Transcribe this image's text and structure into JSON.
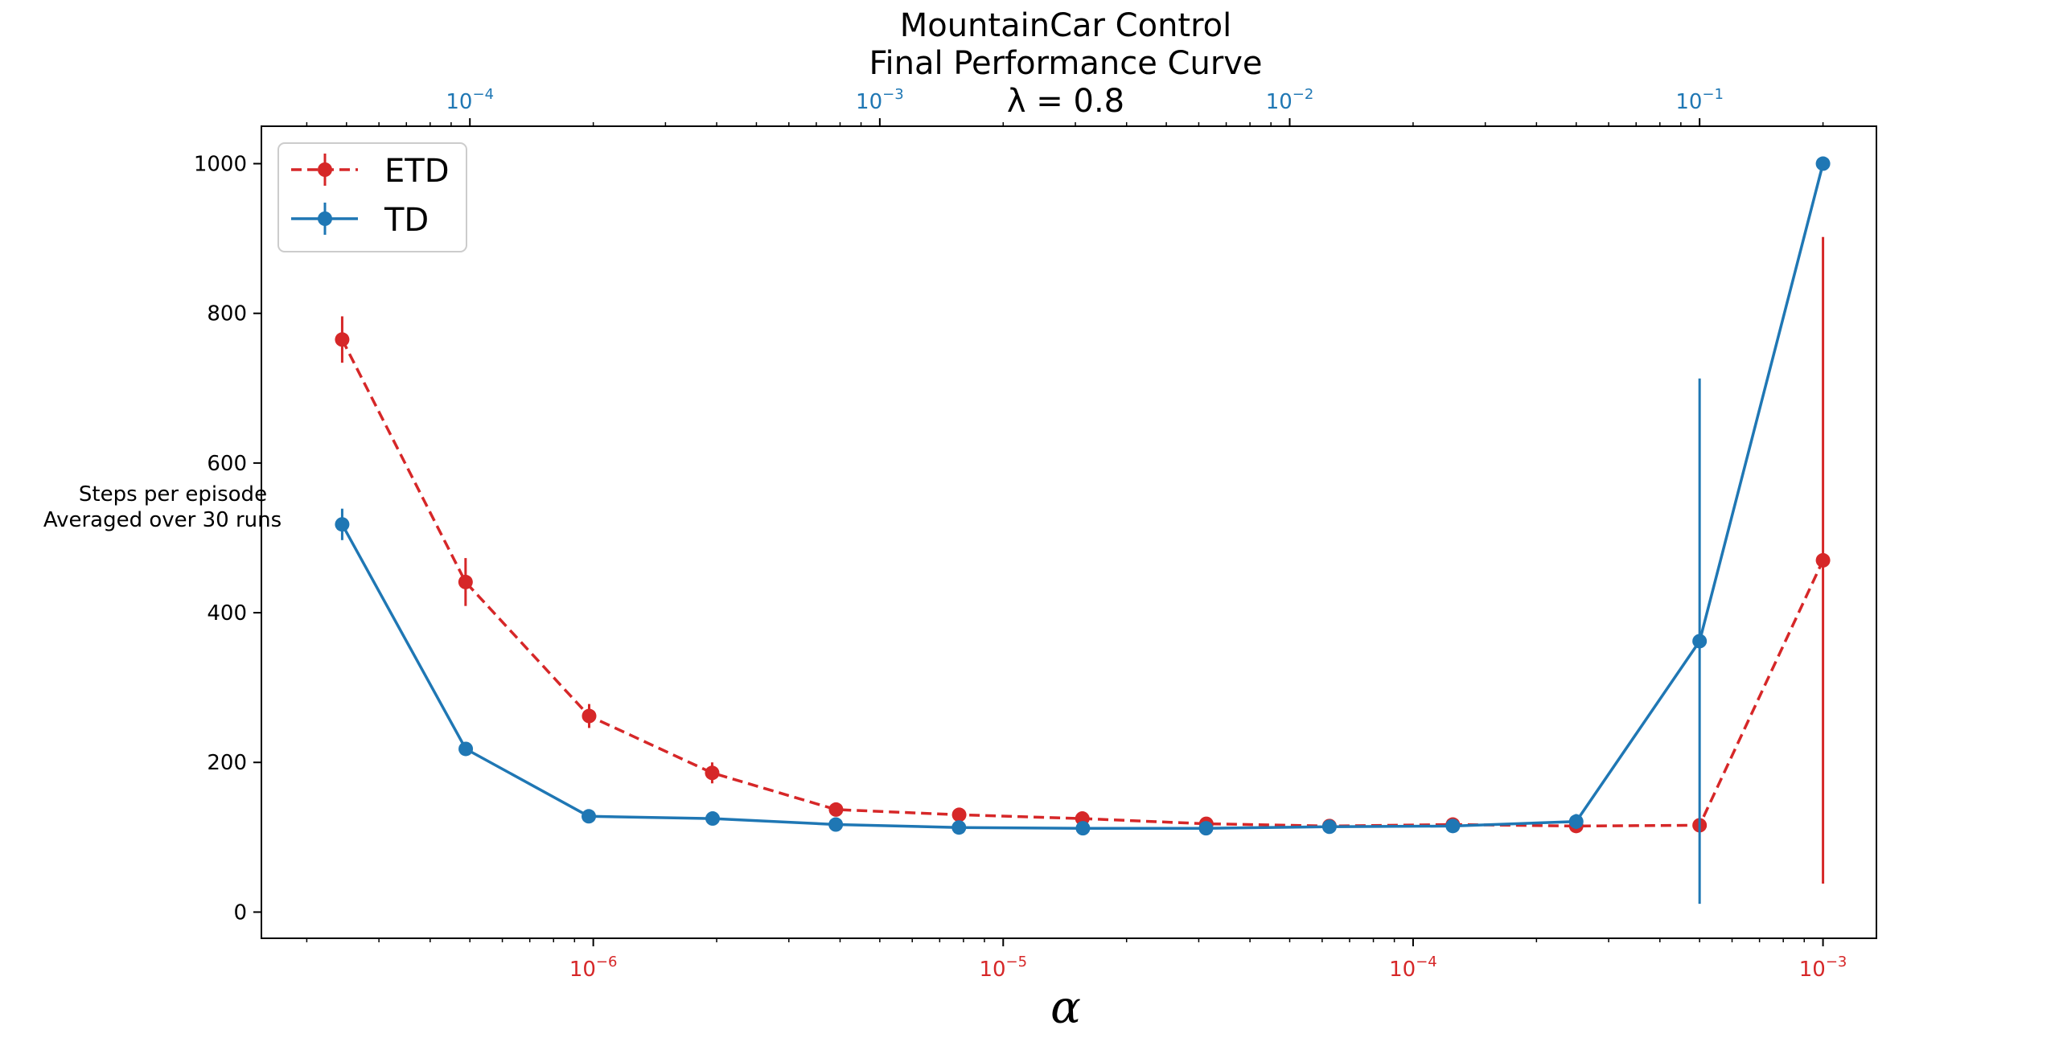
{
  "chart_data": {
    "type": "line",
    "title_lines": [
      "MountainCar Control",
      "Final Performance Curve",
      "λ = 0.8"
    ],
    "xlabel": "α",
    "ylabel_lines": [
      "Steps per episode",
      "Averaged over 30 runs"
    ],
    "ylim": [
      -35,
      1050
    ],
    "yticks": [
      0,
      200,
      400,
      600,
      800,
      1000
    ],
    "x_bottom": {
      "scale": "log",
      "color": "#d62728",
      "range": [
        1.55e-07,
        0.00135
      ],
      "tick_exponents": [
        -6,
        -5,
        -4,
        -3
      ]
    },
    "x_top": {
      "scale": "log",
      "color": "#1f77b4",
      "range": [
        3.1e-05,
        0.27
      ],
      "tick_exponents": [
        -4,
        -3,
        -2,
        -1
      ]
    },
    "legend_position": "top-left",
    "series": [
      {
        "name": "ETD",
        "color": "#d62728",
        "linestyle": "dashed",
        "axis": "bottom",
        "x": [
          2.44e-07,
          4.88e-07,
          9.77e-07,
          1.95e-06,
          3.91e-06,
          7.81e-06,
          1.56e-05,
          3.13e-05,
          6.25e-05,
          0.000125,
          0.00025,
          0.0005,
          0.001
        ],
        "y": [
          765,
          441,
          262,
          186,
          137,
          130,
          125,
          118,
          115,
          117,
          115,
          116,
          470
        ],
        "err": [
          31,
          32,
          16,
          14,
          8,
          6,
          5,
          4,
          4,
          5,
          6,
          6,
          432
        ]
      },
      {
        "name": "TD",
        "color": "#1f77b4",
        "linestyle": "solid",
        "axis": "top",
        "x": [
          4.88e-05,
          9.77e-05,
          0.000195,
          0.000391,
          0.000781,
          0.00156,
          0.00313,
          0.00625,
          0.0125,
          0.025,
          0.05,
          0.1,
          0.2
        ],
        "y": [
          518,
          218,
          128,
          125,
          117,
          113,
          112,
          112,
          114,
          115,
          121,
          362,
          1000
        ],
        "err": [
          21,
          6,
          4,
          4,
          3,
          3,
          3,
          3,
          4,
          4,
          10,
          351,
          0
        ]
      }
    ]
  }
}
